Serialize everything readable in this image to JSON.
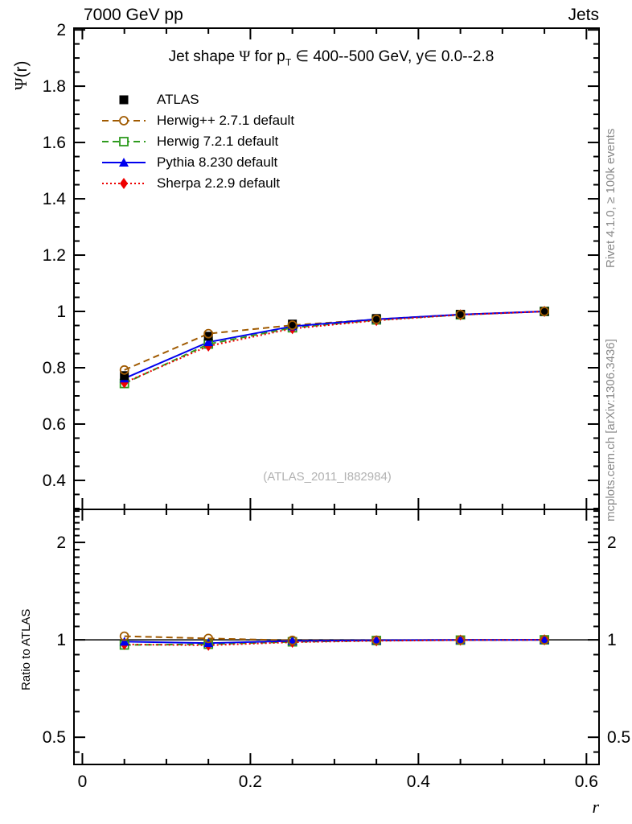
{
  "header": {
    "left": "7000 GeV pp",
    "right": "Jets"
  },
  "main_ylabel": {
    "psi": "Ψ",
    "rest": "(r)"
  },
  "title": {
    "pre": "Jet shape ",
    "psi": "Ψ",
    "mid": " for p",
    "sub": "T",
    "post": " ∈ 400--500 GeV, y∈ 0.0--2.8",
    "full": "Jet shape Ψ for p_T ∈ 400--500 GeV, y∈ 0.0--2.8"
  },
  "watermark": "(ATLAS_2011_I882984)",
  "side_notes": {
    "top": "Rivet 4.1.0, ≥ 100k events",
    "bottom": "mcplots.cern.ch [arXiv:1306.3436]"
  },
  "ratio_ylabel": "Ratio to ATLAS",
  "xlabel": "r",
  "chart_data": {
    "type": "line",
    "title": "Jet shape Ψ for p_T ∈ 400--500 GeV, y∈ 0.0--2.8",
    "xlabel": "r",
    "x": [
      0.05,
      0.15,
      0.25,
      0.35,
      0.45,
      0.55
    ],
    "xlim": [
      -0.01,
      0.615
    ],
    "xticks": [
      0,
      0.2,
      0.4,
      0.6
    ],
    "x_minor_step": 0.05,
    "grid": false,
    "legend_position": "top-left",
    "main_panel": {
      "ylabel": "Ψ(r)",
      "scale": "linear",
      "ylim": [
        0.297,
        2.006
      ],
      "yticks": [
        0.4,
        0.6,
        0.8,
        1,
        1.2,
        1.4,
        1.6,
        1.8,
        2
      ],
      "y_minor_step": 0.05
    },
    "ratio_panel": {
      "ylabel": "Ratio to ATLAS",
      "scale": "log",
      "ylim": [
        0.412,
        2.53
      ],
      "yticks": [
        0.5,
        1,
        2
      ],
      "y_minor_ticks": [
        0.45,
        0.6,
        0.7,
        0.8,
        0.9,
        1.1,
        1.2,
        1.3,
        1.4,
        1.5,
        1.6,
        1.7,
        1.8,
        1.9,
        2.1,
        2.2,
        2.3,
        2.4,
        2.5
      ],
      "reference_line": 1
    },
    "series": [
      {
        "name": "ATLAS",
        "role": "data",
        "color": "#000000",
        "marker": "square-filled",
        "line": "none",
        "values": [
          0.772,
          0.912,
          0.955,
          0.975,
          0.99,
          1.0
        ],
        "ratio": [
          1,
          1,
          1,
          1,
          1,
          1
        ]
      },
      {
        "name": "Herwig++ 2.7.1 default",
        "role": "mc",
        "color": "#a05a00",
        "marker": "circle-open",
        "line": "dashed",
        "values": [
          0.792,
          0.921,
          0.951,
          0.972,
          0.989,
          1.0
        ],
        "ratio": [
          1.026,
          1.01,
          0.996,
          0.997,
          0.999,
          1.0
        ]
      },
      {
        "name": "Herwig 7.2.1 default",
        "role": "mc",
        "color": "#2e9b1e",
        "marker": "square-open",
        "line": "dashed",
        "values": [
          0.744,
          0.884,
          0.942,
          0.97,
          0.988,
          1.0
        ],
        "ratio": [
          0.964,
          0.969,
          0.986,
          0.995,
          0.998,
          1.0
        ]
      },
      {
        "name": "Pythia 8.230 default",
        "role": "mc",
        "color": "#0000ee",
        "marker": "triangle-filled",
        "line": "solid",
        "values": [
          0.762,
          0.891,
          0.947,
          0.972,
          0.989,
          1.0
        ],
        "ratio": [
          0.987,
          0.977,
          0.992,
          0.997,
          0.999,
          1.0
        ]
      },
      {
        "name": "Sherpa 2.2.9 default",
        "role": "mc",
        "color": "#ee0000",
        "marker": "diamond-filled",
        "line": "dotted",
        "values": [
          0.747,
          0.877,
          0.939,
          0.968,
          0.988,
          1.0
        ],
        "ratio": [
          0.968,
          0.962,
          0.983,
          0.993,
          0.998,
          1.0
        ]
      }
    ]
  }
}
